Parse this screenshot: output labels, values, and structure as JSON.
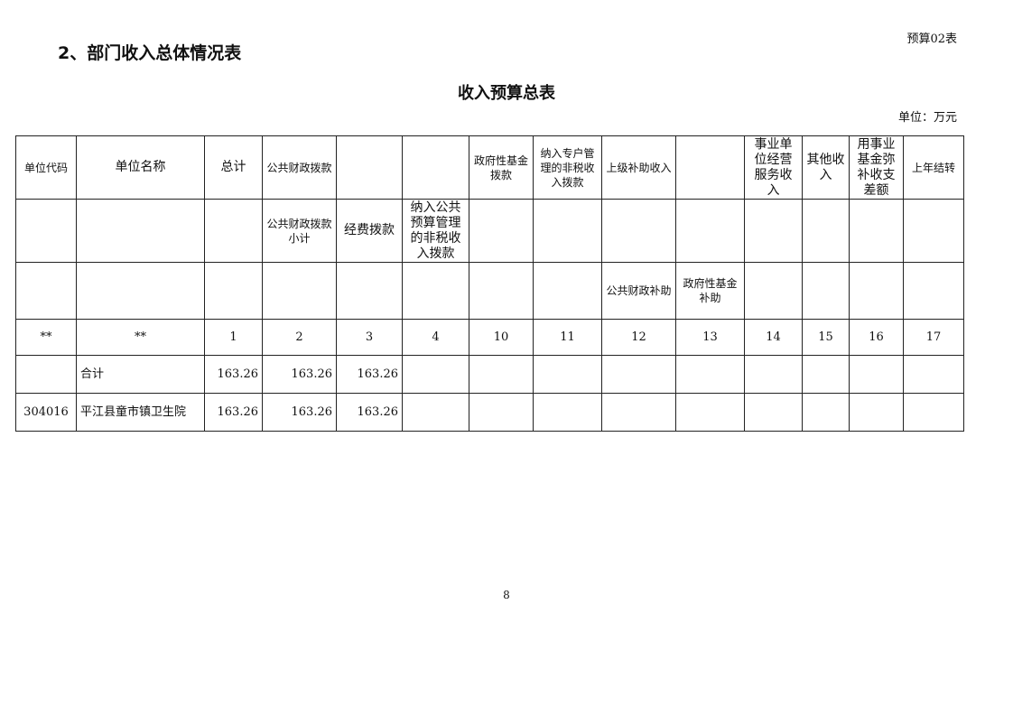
{
  "section_title": "2、部门收入总体情况表",
  "form_no": "预算02表",
  "table_title": "收入预算总表",
  "unit": "单位：万元",
  "header_row1": [
    "单位代码",
    "单位名称",
    "总计",
    "公共财政拨款",
    "",
    "",
    "政府性基金拨款",
    "纳入专户管理的非税收入拨款",
    "上级补助收入",
    "",
    "事业单位经营服务收入",
    "其他收入",
    "用事业基金弥补收支差额",
    "上年结转"
  ],
  "header_row2": [
    "",
    "",
    "",
    "公共财政拨款小计",
    "经费拨款",
    "纳入公共预算管理的非税收入拨款",
    "",
    "",
    "",
    "",
    "",
    "",
    "",
    ""
  ],
  "header_row3": [
    "",
    "",
    "",
    "",
    "",
    "",
    "",
    "",
    "公共财政补助",
    "政府性基金补助",
    "",
    "",
    "",
    ""
  ],
  "index_row": [
    "**",
    "**",
    "1",
    "2",
    "3",
    "4",
    "10",
    "11",
    "12",
    "13",
    "14",
    "15",
    "16",
    "17"
  ],
  "rows": [
    [
      "",
      "合计",
      "163.26",
      "163.26",
      "163.26",
      "",
      "",
      "",
      "",
      "",
      "",
      "",
      "",
      ""
    ],
    [
      "304016",
      "平江县童市镇卫生院",
      "163.26",
      "163.26",
      "163.26",
      "",
      "",
      "",
      "",
      "",
      "",
      "",
      "",
      ""
    ]
  ],
  "page_number": "8"
}
